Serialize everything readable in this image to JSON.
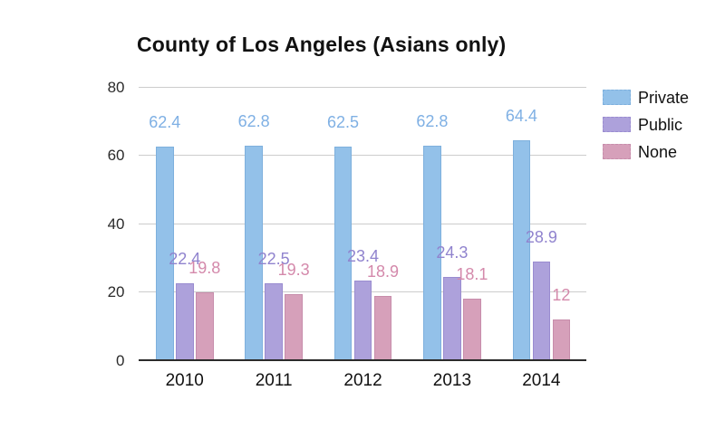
{
  "chart_data": {
    "type": "bar",
    "title": "County of Los Angeles (Asians only)",
    "categories": [
      "2010",
      "2011",
      "2012",
      "2013",
      "2014"
    ],
    "series": [
      {
        "name": "Private",
        "color": "#93c1e9",
        "border_color": "#7eb0dd",
        "label_color": "#7fb0e4",
        "values": [
          62.4,
          62.8,
          62.5,
          62.8,
          64.4
        ]
      },
      {
        "name": "Public",
        "color": "#ada1db",
        "border_color": "#9a8cd0",
        "label_color": "#9083ce",
        "values": [
          22.4,
          22.5,
          23.4,
          24.3,
          28.9
        ]
      },
      {
        "name": "None",
        "color": "#d6a0ba",
        "border_color": "#c78dab",
        "label_color": "#d489ab",
        "values": [
          19.8,
          19.3,
          18.9,
          18.1,
          12
        ]
      }
    ],
    "yticks": [
      0,
      20,
      40,
      60,
      80
    ],
    "ylim": [
      0,
      80
    ],
    "grid": true,
    "legend_position": "right",
    "value_labels": true
  }
}
